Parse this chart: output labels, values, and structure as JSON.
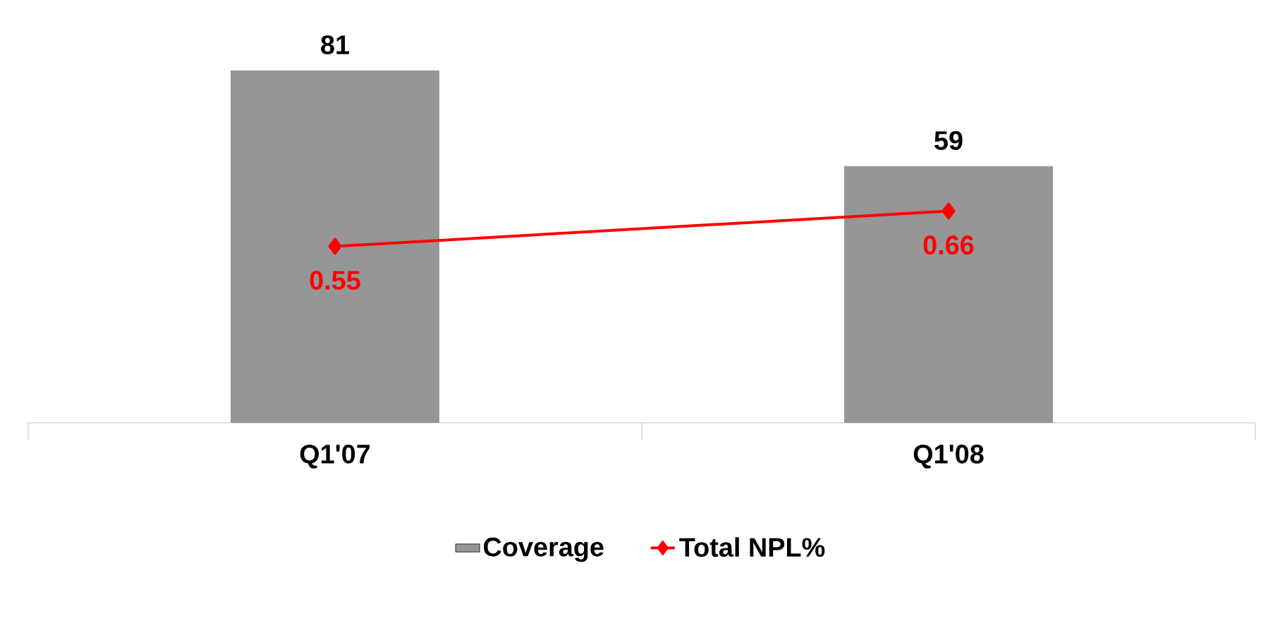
{
  "chart_data": {
    "type": "bar",
    "categories": [
      "Q1'07",
      "Q1'08"
    ],
    "series": [
      {
        "name": "Coverage",
        "color": "#969696",
        "values": [
          81,
          59
        ]
      },
      {
        "name": "Total NPL%",
        "type": "line",
        "axis": "y2",
        "color": "#ff0000",
        "marker": "diamond",
        "values": [
          0.55,
          0.66
        ]
      }
    ],
    "data_labels": true,
    "legend": "bottom",
    "grid": false
  }
}
